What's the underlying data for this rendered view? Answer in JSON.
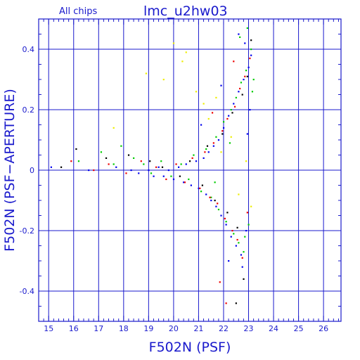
{
  "chart_data": {
    "type": "scatter",
    "title": "lmc_u2hw03",
    "subtitle": "All chips",
    "xlabel": "F502N (PSF)",
    "ylabel": "F502N (PSF−APERTURE)",
    "xlim": [
      14.6,
      26.7
    ],
    "ylim": [
      -0.5,
      0.5
    ],
    "x_ticks": [
      15,
      16,
      17,
      18,
      19,
      20,
      21,
      22,
      23,
      24,
      25,
      26
    ],
    "y_ticks": [
      -0.4,
      -0.2,
      0,
      0.2,
      0.4
    ],
    "x_tick_labels": [
      "15",
      "16",
      "17",
      "18",
      "19",
      "20",
      "21",
      "22",
      "23",
      "24",
      "25",
      "26"
    ],
    "y_tick_labels": [
      "-0.4",
      "-0.2",
      "0",
      "0.2",
      "0.4"
    ],
    "grid": true,
    "legend": "none",
    "series_colors": [
      "#0000ee",
      "#00cc00",
      "#ee0000",
      "#000000",
      "#eeee00"
    ],
    "series": [
      {
        "color": "#0000ee",
        "points": [
          [
            15.1,
            0.01
          ],
          [
            16.6,
            0.0
          ],
          [
            17.7,
            0.01
          ],
          [
            18.3,
            0.0
          ],
          [
            18.6,
            -0.01
          ],
          [
            19.0,
            0.0
          ],
          [
            19.2,
            -0.02
          ],
          [
            19.4,
            0.01
          ],
          [
            19.6,
            -0.02
          ],
          [
            19.8,
            0.0
          ],
          [
            20.0,
            -0.03
          ],
          [
            20.2,
            0.01
          ],
          [
            20.4,
            -0.04
          ],
          [
            20.5,
            0.02
          ],
          [
            20.7,
            -0.05
          ],
          [
            20.9,
            0.03
          ],
          [
            21.0,
            -0.06
          ],
          [
            21.2,
            0.04
          ],
          [
            21.3,
            -0.08
          ],
          [
            21.4,
            0.06
          ],
          [
            21.5,
            -0.1
          ],
          [
            21.6,
            0.08
          ],
          [
            21.7,
            -0.12
          ],
          [
            21.8,
            0.1
          ],
          [
            21.9,
            -0.15
          ],
          [
            22.0,
            0.14
          ],
          [
            22.1,
            -0.18
          ],
          [
            22.2,
            0.18
          ],
          [
            22.3,
            -0.22
          ],
          [
            22.4,
            0.22
          ],
          [
            22.5,
            -0.25
          ],
          [
            22.6,
            0.26
          ],
          [
            22.7,
            -0.28
          ],
          [
            22.8,
            0.3
          ],
          [
            22.9,
            -0.2
          ],
          [
            23.0,
            0.34
          ],
          [
            23.1,
            0.38
          ],
          [
            22.85,
            0.42
          ],
          [
            22.75,
            -0.32
          ],
          [
            22.95,
            0.12
          ],
          [
            21.1,
            0.15
          ],
          [
            21.9,
            0.28
          ],
          [
            22.2,
            -0.3
          ],
          [
            23.05,
            0.2
          ],
          [
            22.6,
            0.45
          ]
        ]
      },
      {
        "color": "#00cc00",
        "points": [
          [
            16.2,
            0.03
          ],
          [
            17.1,
            0.06
          ],
          [
            17.6,
            0.02
          ],
          [
            17.9,
            0.08
          ],
          [
            18.4,
            0.04
          ],
          [
            18.8,
            0.02
          ],
          [
            19.1,
            -0.01
          ],
          [
            19.5,
            0.03
          ],
          [
            19.9,
            -0.02
          ],
          [
            20.3,
            0.02
          ],
          [
            20.6,
            -0.03
          ],
          [
            20.8,
            0.05
          ],
          [
            21.1,
            -0.07
          ],
          [
            21.3,
            0.07
          ],
          [
            21.5,
            -0.09
          ],
          [
            21.7,
            0.11
          ],
          [
            21.8,
            -0.13
          ],
          [
            22.0,
            0.16
          ],
          [
            22.1,
            -0.17
          ],
          [
            22.3,
            0.2
          ],
          [
            22.4,
            -0.21
          ],
          [
            22.5,
            0.24
          ],
          [
            22.6,
            -0.24
          ],
          [
            22.7,
            0.29
          ],
          [
            22.8,
            -0.27
          ],
          [
            22.9,
            0.33
          ],
          [
            23.0,
            -0.18
          ],
          [
            23.1,
            0.4
          ],
          [
            23.2,
            0.3
          ],
          [
            22.65,
            0.44
          ],
          [
            22.85,
            -0.22
          ],
          [
            22.25,
            0.09
          ],
          [
            21.65,
            -0.04
          ],
          [
            22.95,
            0.47
          ],
          [
            23.15,
            0.26
          ]
        ]
      },
      {
        "color": "#ee0000",
        "points": [
          [
            15.9,
            0.03
          ],
          [
            16.8,
            0.0
          ],
          [
            17.4,
            0.02
          ],
          [
            18.1,
            -0.01
          ],
          [
            18.7,
            0.03
          ],
          [
            19.3,
            0.01
          ],
          [
            19.7,
            -0.03
          ],
          [
            20.1,
            0.02
          ],
          [
            20.45,
            -0.04
          ],
          [
            20.75,
            0.04
          ],
          [
            21.05,
            -0.06
          ],
          [
            21.25,
            0.06
          ],
          [
            21.45,
            -0.09
          ],
          [
            21.6,
            0.09
          ],
          [
            21.75,
            -0.11
          ],
          [
            21.95,
            0.13
          ],
          [
            22.05,
            -0.16
          ],
          [
            22.15,
            0.17
          ],
          [
            22.35,
            -0.2
          ],
          [
            22.45,
            0.21
          ],
          [
            22.55,
            -0.23
          ],
          [
            22.65,
            0.27
          ],
          [
            22.75,
            -0.29
          ],
          [
            22.85,
            0.31
          ],
          [
            22.95,
            -0.14
          ],
          [
            23.05,
            0.37
          ],
          [
            21.85,
            -0.37
          ],
          [
            22.1,
            -0.44
          ],
          [
            22.4,
            0.36
          ],
          [
            21.55,
            0.19
          ]
        ]
      },
      {
        "color": "#000000",
        "points": [
          [
            15.5,
            0.01
          ],
          [
            16.1,
            0.07
          ],
          [
            17.3,
            0.04
          ],
          [
            18.2,
            0.05
          ],
          [
            19.05,
            0.03
          ],
          [
            19.55,
            0.01
          ],
          [
            20.25,
            -0.02
          ],
          [
            20.65,
            0.03
          ],
          [
            21.15,
            -0.05
          ],
          [
            21.35,
            0.08
          ],
          [
            21.65,
            -0.1
          ],
          [
            21.95,
            0.12
          ],
          [
            22.15,
            -0.14
          ],
          [
            22.35,
            0.19
          ],
          [
            22.55,
            -0.19
          ],
          [
            22.75,
            0.25
          ],
          [
            22.95,
            0.31
          ],
          [
            23.1,
            0.43
          ],
          [
            22.5,
            -0.44
          ],
          [
            22.8,
            -0.36
          ]
        ]
      },
      {
        "color": "#eeee00",
        "points": [
          [
            17.6,
            0.14
          ],
          [
            18.9,
            0.32
          ],
          [
            19.6,
            0.3
          ],
          [
            20.0,
            0.42
          ],
          [
            20.35,
            0.36
          ],
          [
            20.5,
            0.39
          ],
          [
            20.9,
            0.26
          ],
          [
            21.2,
            0.22
          ],
          [
            21.4,
            0.17
          ],
          [
            21.7,
            0.24
          ],
          [
            21.9,
            0.06
          ],
          [
            22.3,
            0.11
          ],
          [
            22.6,
            -0.08
          ],
          [
            22.9,
            0.03
          ],
          [
            23.1,
            -0.12
          ]
        ]
      }
    ]
  }
}
